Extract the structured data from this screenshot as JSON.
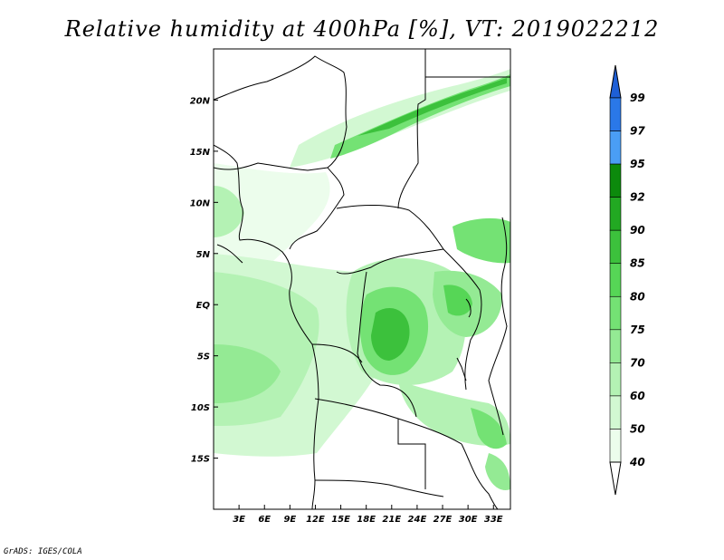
{
  "title": "Relative humidity at 400hPa [%], VT: 2019022212",
  "credit": "GrADS: IGES/COLA",
  "map": {
    "lon_range": [
      0,
      35
    ],
    "lat_range": [
      -20,
      25
    ],
    "lon_ticks": [
      "3E",
      "6E",
      "9E",
      "12E",
      "15E",
      "18E",
      "21E",
      "24E",
      "27E",
      "30E",
      "33E"
    ],
    "lat_ticks": [
      "20N",
      "15N",
      "10N",
      "5N",
      "EQ",
      "5S",
      "10S",
      "15S"
    ]
  },
  "colorbar": {
    "levels": [
      "99",
      "97",
      "95",
      "92",
      "90",
      "85",
      "80",
      "75",
      "70",
      "60",
      "50",
      "40"
    ],
    "colors": [
      "#1e5fd6",
      "#2a78e8",
      "#4a9ef5",
      "#0c8a0c",
      "#22a922",
      "#3cc13c",
      "#56d656",
      "#74e274",
      "#94ea94",
      "#b4f2b4",
      "#d2f8d2",
      "#ecfdec"
    ]
  }
}
